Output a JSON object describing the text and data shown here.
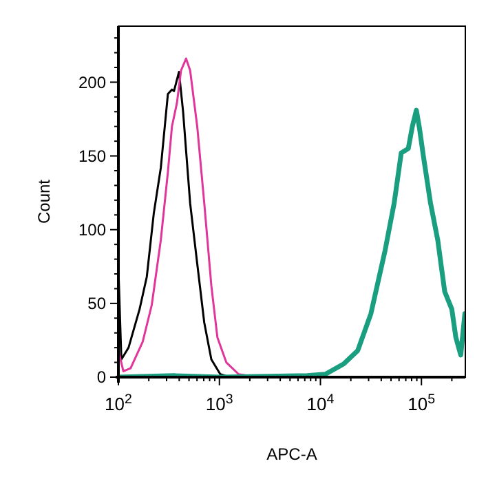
{
  "chart_data": {
    "type": "line",
    "xlabel": "APC-A",
    "ylabel": "Count",
    "log": "x",
    "xlim": [
      100,
      272000
    ],
    "ylim": [
      0,
      238
    ],
    "xticks": [
      {
        "value": 100,
        "label": "10$^{2}$"
      },
      {
        "value": 200,
        "label": null
      },
      {
        "value": 300,
        "label": null
      },
      {
        "value": 400,
        "label": null
      },
      {
        "value": 500,
        "label": null
      },
      {
        "value": 600,
        "label": null
      },
      {
        "value": 700,
        "label": null
      },
      {
        "value": 800,
        "label": null
      },
      {
        "value": 900,
        "label": null
      },
      {
        "value": 1000,
        "label": "10$^{3}$"
      },
      {
        "value": 2000,
        "label": null
      },
      {
        "value": 3000,
        "label": null
      },
      {
        "value": 4000,
        "label": null
      },
      {
        "value": 5000,
        "label": null
      },
      {
        "value": 6000,
        "label": null
      },
      {
        "value": 7000,
        "label": null
      },
      {
        "value": 8000,
        "label": null
      },
      {
        "value": 9000,
        "label": null
      },
      {
        "value": 10000,
        "label": "10$^{4}$"
      },
      {
        "value": 20000,
        "label": null
      },
      {
        "value": 30000,
        "label": null
      },
      {
        "value": 40000,
        "label": null
      },
      {
        "value": 50000,
        "label": null
      },
      {
        "value": 60000,
        "label": null
      },
      {
        "value": 70000,
        "label": null
      },
      {
        "value": 80000,
        "label": null
      },
      {
        "value": 90000,
        "label": null
      },
      {
        "value": 100000,
        "label": "10$^{5}$"
      },
      {
        "value": 200000,
        "label": null
      }
    ],
    "yticks": [
      0,
      {
        "value": 10,
        "label": null
      },
      {
        "value": 20,
        "label": null
      },
      {
        "value": 30,
        "label": null
      },
      {
        "value": 40,
        "label": null
      },
      50,
      {
        "value": 60,
        "label": null
      },
      {
        "value": 70,
        "label": null
      },
      {
        "value": 80,
        "label": null
      },
      {
        "value": 90,
        "label": null
      },
      100,
      {
        "value": 110,
        "label": null
      },
      {
        "value": 120,
        "label": null
      },
      {
        "value": 130,
        "label": null
      },
      {
        "value": 140,
        "label": null
      },
      150,
      {
        "value": 160,
        "label": null
      },
      {
        "value": 170,
        "label": null
      },
      {
        "value": 180,
        "label": null
      },
      {
        "value": 190,
        "label": null
      },
      200,
      {
        "value": 210,
        "label": null
      },
      {
        "value": 220,
        "label": null
      },
      {
        "value": 230,
        "label": null
      }
    ],
    "grid": false,
    "marker": "none",
    "line_style": "solid",
    "series": [
      {
        "color": "#000000",
        "x": [
          100,
          107,
          126,
          162,
          191,
          224,
          263,
          309,
          339,
          355,
          398,
          437,
          513,
          603,
          708,
          832,
          1020,
          1260,
          1700
        ],
        "values": [
          74,
          12,
          20,
          46,
          68,
          111,
          142,
          192,
          195,
          194,
          207,
          180,
          118,
          77,
          37,
          12,
          2,
          0,
          0
        ]
      },
      {
        "color": "#e0359a",
        "x": [
          100,
          112,
          132,
          174,
          214,
          263,
          309,
          339,
          380,
          417,
          468,
          513,
          603,
          708,
          832,
          955,
          1170,
          1550,
          2340
        ],
        "values": [
          18,
          4,
          6,
          24,
          49,
          93,
          139,
          170,
          186,
          208,
          216,
          208,
          170,
          118,
          62,
          27,
          10,
          2,
          0
        ]
      },
      {
        "color": "#1a9e80",
        "x": [
          100,
          355,
          1020,
          7410,
          11200,
          17000,
          23400,
          31600,
          43700,
          53700,
          63100,
          74100,
          81300,
          89100,
          95500,
          105000,
          123000,
          145000,
          170000,
          200000,
          219000,
          245000,
          269000
        ],
        "values": [
          0,
          1,
          0,
          1,
          2,
          9,
          18,
          43,
          86,
          118,
          152,
          155,
          170,
          181,
          169,
          149,
          118,
          93,
          58,
          46,
          27,
          15,
          43
        ]
      }
    ]
  }
}
